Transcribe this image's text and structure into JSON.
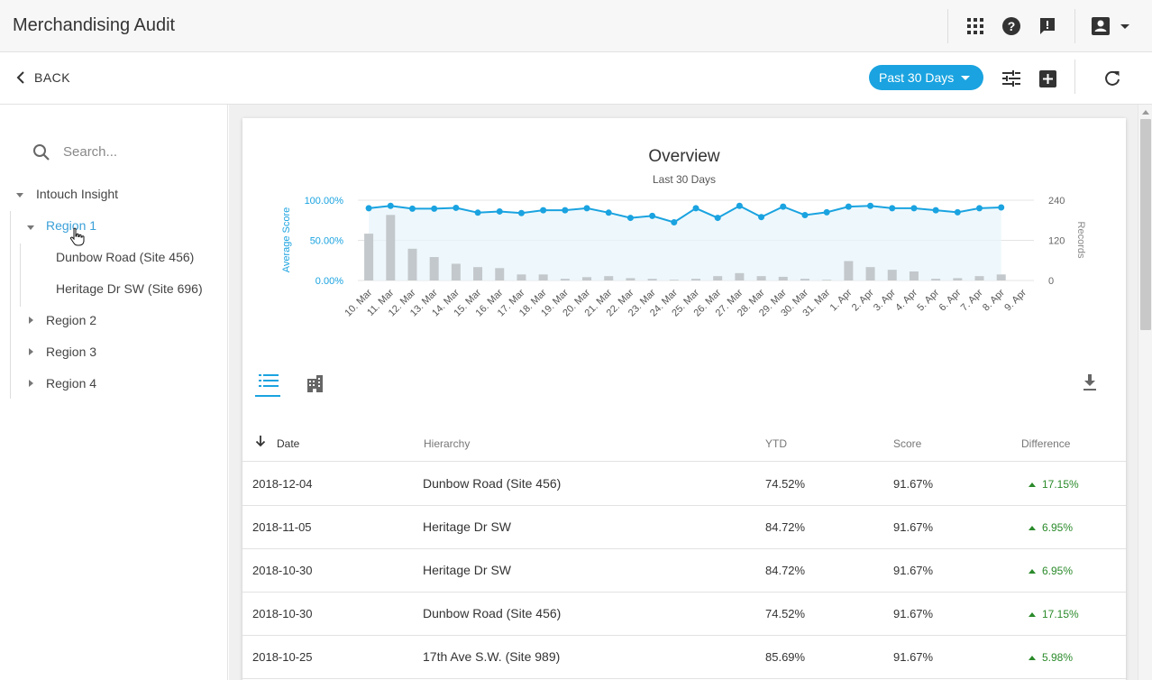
{
  "app": {
    "title": "Merchandising Audit"
  },
  "header": {
    "icons": [
      "apps-grid-icon",
      "help-icon",
      "feedback-icon",
      "account-icon",
      "chevron-down-icon"
    ]
  },
  "toolbar": {
    "back_label": "BACK",
    "date_range": "Past 30 Days",
    "icons": [
      "filter-icon",
      "add-icon",
      "refresh-icon"
    ]
  },
  "sidebar": {
    "search_placeholder": "Search...",
    "root": "Intouch Insight",
    "region1": "Region 1",
    "region1_children": [
      "Dunbow Road (Site 456)",
      "Heritage Dr SW (Site 696)"
    ],
    "region2": "Region 2",
    "region3": "Region 3",
    "region4": "Region 4"
  },
  "colors": {
    "accent": "#1aa3e0",
    "bars": "#c3c8cc",
    "positive": "#2a8a2a",
    "active_link": "#3aa0d8"
  },
  "chart_data": {
    "type": "bar+line",
    "title": "Overview",
    "subtitle": "Last 30 Days",
    "ylabel": "Average Score",
    "y2label": "Records",
    "ylim": [
      0,
      100
    ],
    "y2lim": [
      0,
      240
    ],
    "yticks": [
      "100.00%",
      "50.00%",
      "0.00%"
    ],
    "y2ticks": [
      "240",
      "120",
      "0"
    ],
    "categories": [
      "10. Mar",
      "11. Mar",
      "12. Mar",
      "13. Mar",
      "14. Mar",
      "15. Mar",
      "16. Mar",
      "17. Mar",
      "18. Mar",
      "19. Mar",
      "20. Mar",
      "21. Mar",
      "22. Mar",
      "23. Mar",
      "24. Mar",
      "25. Mar",
      "26. Mar",
      "27. Mar",
      "28. Mar",
      "29. Mar",
      "30. Mar",
      "31. Mar",
      "1. Apr",
      "2. Apr",
      "3. Apr",
      "4. Apr",
      "5. Apr",
      "6. Apr",
      "7. Apr",
      "8. Apr",
      "9. Apr"
    ],
    "series": [
      {
        "name": "Records",
        "type": "bar",
        "axis": "right",
        "values": [
          140,
          196,
          95,
          70,
          50,
          40,
          37,
          18,
          18,
          5,
          10,
          13,
          7,
          5,
          2,
          5,
          13,
          22,
          13,
          11,
          5,
          2,
          58,
          40,
          32,
          27,
          5,
          7,
          13,
          18,
          0
        ]
      },
      {
        "name": "Average Score",
        "type": "line",
        "axis": "left",
        "values": [
          90,
          93,
          89.5,
          89.5,
          90.5,
          84.5,
          86,
          84,
          87.5,
          87.5,
          90,
          84.5,
          78,
          80.5,
          72.5,
          90,
          78,
          93,
          79,
          92,
          81.5,
          85,
          92,
          93,
          90,
          90,
          87.5,
          85,
          90,
          91,
          null
        ]
      }
    ]
  },
  "table": {
    "view_icons": [
      "list-view-icon",
      "building-view-icon",
      "download-icon"
    ],
    "columns": [
      "Date",
      "Hierarchy",
      "YTD",
      "Score",
      "Difference"
    ],
    "rows": [
      {
        "date": "2018-12-04",
        "hierarchy": "Dunbow Road (Site 456)",
        "ytd": "74.52%",
        "score": "91.67%",
        "diff": "17.15%"
      },
      {
        "date": "2018-11-05",
        "hierarchy": "Heritage Dr SW",
        "ytd": "84.72%",
        "score": "91.67%",
        "diff": "6.95%"
      },
      {
        "date": "2018-10-30",
        "hierarchy": "Heritage Dr SW",
        "ytd": "84.72%",
        "score": "91.67%",
        "diff": "6.95%"
      },
      {
        "date": "2018-10-30",
        "hierarchy": "Dunbow Road (Site 456)",
        "ytd": "74.52%",
        "score": "91.67%",
        "diff": "17.15%"
      },
      {
        "date": "2018-10-25",
        "hierarchy": "17th Ave S.W. (Site 989)",
        "ytd": "85.69%",
        "score": "91.67%",
        "diff": "5.98%"
      }
    ]
  }
}
